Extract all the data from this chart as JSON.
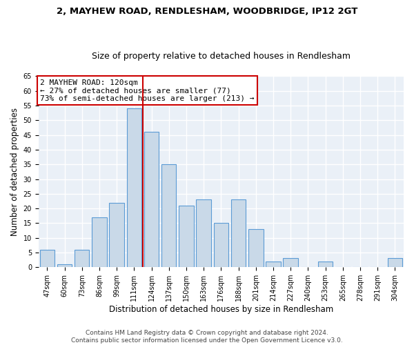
{
  "title1": "2, MAYHEW ROAD, RENDLESHAM, WOODBRIDGE, IP12 2GT",
  "title2": "Size of property relative to detached houses in Rendlesham",
  "xlabel": "Distribution of detached houses by size in Rendlesham",
  "ylabel": "Number of detached properties",
  "categories": [
    "47sqm",
    "60sqm",
    "73sqm",
    "86sqm",
    "99sqm",
    "111sqm",
    "124sqm",
    "137sqm",
    "150sqm",
    "163sqm",
    "176sqm",
    "188sqm",
    "201sqm",
    "214sqm",
    "227sqm",
    "240sqm",
    "253sqm",
    "265sqm",
    "278sqm",
    "291sqm",
    "304sqm"
  ],
  "values": [
    6,
    1,
    6,
    17,
    22,
    54,
    46,
    35,
    21,
    23,
    15,
    23,
    13,
    2,
    3,
    0,
    2,
    0,
    0,
    0,
    3
  ],
  "bar_color": "#c9d9e8",
  "bar_edge_color": "#5b9bd5",
  "ref_line_x": 6.0,
  "ref_line_label": "2 MAYHEW ROAD: 120sqm",
  "ref_line_smaller": "← 27% of detached houses are smaller (77)",
  "ref_line_larger": "73% of semi-detached houses are larger (213) →",
  "ylim": [
    0,
    65
  ],
  "yticks": [
    0,
    5,
    10,
    15,
    20,
    25,
    30,
    35,
    40,
    45,
    50,
    55,
    60,
    65
  ],
  "footer1": "Contains HM Land Registry data © Crown copyright and database right 2024.",
  "footer2": "Contains public sector information licensed under the Open Government Licence v3.0.",
  "bg_color": "#eaf0f7",
  "grid_color": "#ffffff",
  "annotation_box_color": "#ffffff",
  "annotation_box_edge_color": "#cc0000",
  "ref_line_color": "#cc0000",
  "title_fontsize": 9.5,
  "subtitle_fontsize": 9,
  "tick_fontsize": 7,
  "label_fontsize": 8.5,
  "annotation_fontsize": 8,
  "footer_fontsize": 6.5
}
